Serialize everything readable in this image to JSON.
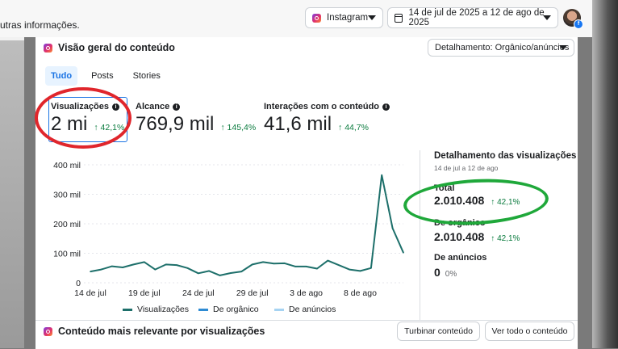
{
  "header": {
    "crumb_text": "utras informações.",
    "platform_label": "Instagram",
    "date_range": "14 de jul de 2025 a 12 de ago de 2025"
  },
  "overview": {
    "title": "Visão geral do conteúdo",
    "breakdown_dropdown": "Detalhamento: Orgânico/anúncios",
    "tabs": [
      "Tudo",
      "Posts",
      "Stories"
    ],
    "metrics": [
      {
        "label": "Visualizações",
        "value": "2 mi",
        "delta": "↑ 42,1%"
      },
      {
        "label": "Alcance",
        "value": "769,9 mil",
        "delta": "↑ 145,4%"
      },
      {
        "label": "Interações com o conteúdo",
        "value": "41,6 mil",
        "delta": "↑ 44,7%"
      }
    ]
  },
  "breakdown": {
    "title": "Detalhamento das visualizações",
    "period": "14 de jul a 12 de ago",
    "total_label": "Total",
    "total_value": "2.010.408",
    "total_delta": "↑ 42,1%",
    "organic_label": "De orgânico",
    "organic_value": "2.010.408",
    "organic_delta": "↑ 42,1%",
    "ads_label": "De anúncios",
    "ads_value": "0",
    "ads_pct": "0%"
  },
  "chart_data": {
    "type": "line",
    "y_tick_labels": [
      "400 mil",
      "300 mil",
      "200 mil",
      "100 mil",
      "0"
    ],
    "y_ticks": [
      400000,
      300000,
      200000,
      100000,
      0
    ],
    "ylim": [
      0,
      400000
    ],
    "x_tick_labels": [
      "14 de jul",
      "19 de jul",
      "24 de jul",
      "29 de jul",
      "3 de ago",
      "8 de ago"
    ],
    "x_tick_index": [
      0,
      5,
      10,
      15,
      20,
      25
    ],
    "series": [
      {
        "name": "Visualizações",
        "color": "#1d6f6a",
        "values": [
          38000,
          45000,
          56000,
          52000,
          62000,
          70000,
          45000,
          62000,
          60000,
          50000,
          32000,
          40000,
          25000,
          33000,
          38000,
          62000,
          70000,
          65000,
          66000,
          55000,
          55000,
          48000,
          75000,
          60000,
          45000,
          40000,
          50000,
          365000,
          185000,
          102000
        ]
      },
      {
        "name": "De orgânico",
        "color": "#2e8bd3",
        "values": []
      },
      {
        "name": "De anúncios",
        "color": "#a6d3f2",
        "values": []
      }
    ]
  },
  "relevant": {
    "title": "Conteúdo mais relevante por visualizações",
    "boost_button": "Turbinar conteúdo",
    "see_all_button": "Ver todo o conteúdo"
  }
}
